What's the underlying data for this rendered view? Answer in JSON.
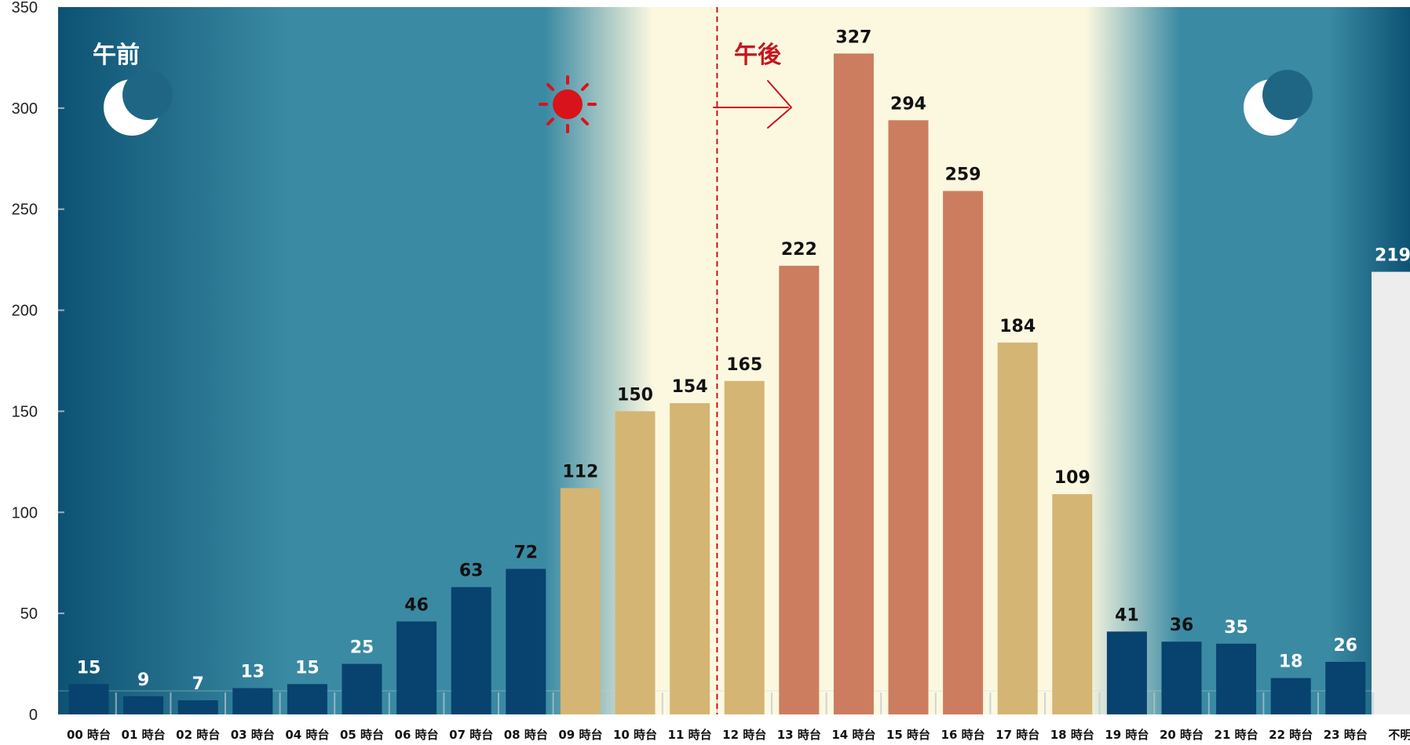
{
  "chart_data": {
    "type": "bar",
    "categories": [
      "00 時台",
      "01 時台",
      "02 時台",
      "03 時台",
      "04 時台",
      "05 時台",
      "06 時台",
      "07 時台",
      "08 時台",
      "09 時台",
      "10 時台",
      "11 時台",
      "12 時台",
      "13 時台",
      "14 時台",
      "15 時台",
      "16 時台",
      "17 時台",
      "18 時台",
      "19 時台",
      "20 時台",
      "21 時台",
      "22 時台",
      "23 時台",
      "不明"
    ],
    "values": [
      15,
      9,
      7,
      13,
      15,
      25,
      46,
      63,
      72,
      112,
      150,
      154,
      165,
      222,
      327,
      294,
      259,
      184,
      109,
      41,
      36,
      35,
      18,
      26,
      219
    ],
    "value_labels": [
      "15",
      "9",
      "7",
      "13",
      "15",
      "25",
      "46",
      "63",
      "72",
      "112",
      "150",
      "154",
      "165",
      "222",
      "327",
      "294",
      "259",
      "184",
      "109",
      "41",
      "36",
      "35",
      "18",
      "26",
      "219"
    ],
    "ylim": [
      0,
      350
    ],
    "yticks": [
      0,
      50,
      100,
      150,
      200,
      250,
      300,
      350
    ],
    "title": "",
    "xlabel": "",
    "ylabel": "",
    "grid": false,
    "legend": "none",
    "annotations": {
      "am_label": "午前",
      "pm_label": "午後",
      "divider_between": [
        "11 時台",
        "12 時台"
      ]
    },
    "colors": {
      "night_bar": "#08426e",
      "day_bar": "#d4b574",
      "peak_bar": "#cc7d5f",
      "unknown_bar": "#ededed",
      "divider": "#c8141e",
      "am_text": "#ffffff",
      "pm_text": "#c8141e",
      "sky_night": "#0d5273",
      "sky_dusk": "#3a8aa3",
      "sky_day": "#fcf8e0"
    },
    "bar_color_groups": [
      "night",
      "night",
      "night",
      "night",
      "night",
      "night",
      "night",
      "night",
      "night",
      "day",
      "day",
      "day",
      "day",
      "peak",
      "peak",
      "peak",
      "peak",
      "day",
      "day",
      "night",
      "night",
      "night",
      "night",
      "night",
      "unknown"
    ],
    "icons": {
      "am_moon": "crescent-moon-icon",
      "sun": "sun-icon",
      "pm_arrow": "right-arrow-icon",
      "pm_moon": "crescent-moon-icon"
    }
  }
}
